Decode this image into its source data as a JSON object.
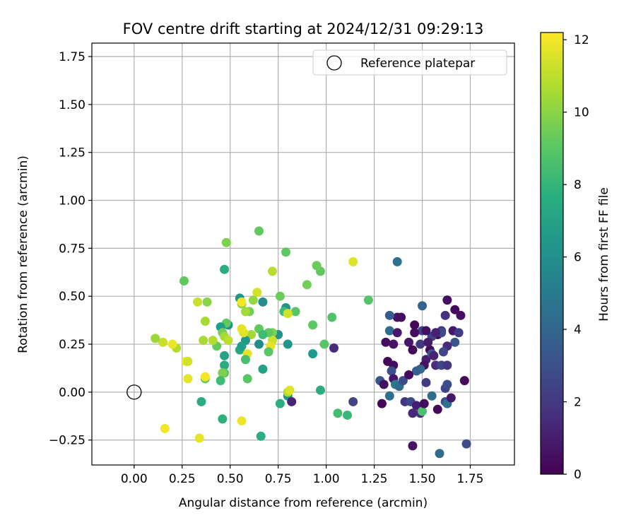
{
  "chart_data": {
    "type": "scatter",
    "title": "FOV centre drift starting at 2024/12/31 09:29:13",
    "xlabel": "Angular distance from reference (arcmin)",
    "ylabel": "Rotation from reference (arcmin)",
    "xlim": [
      -0.22,
      1.98
    ],
    "ylim": [
      -0.38,
      1.82
    ],
    "xticks": [
      0.0,
      0.25,
      0.5,
      0.75,
      1.0,
      1.25,
      1.5,
      1.75
    ],
    "xtick_labels": [
      "0.00",
      "0.25",
      "0.50",
      "0.75",
      "1.00",
      "1.25",
      "1.50",
      "1.75"
    ],
    "yticks": [
      -0.25,
      0.0,
      0.25,
      0.5,
      0.75,
      1.0,
      1.25,
      1.5,
      1.75
    ],
    "ytick_labels": [
      "−0.25",
      "0.00",
      "0.25",
      "0.50",
      "0.75",
      "1.00",
      "1.25",
      "1.50",
      "1.75"
    ],
    "grid": true,
    "legend": {
      "placement": "top-right",
      "entries": [
        "Reference platepar"
      ]
    },
    "reference_point": {
      "x": 0.0,
      "y": 0.0,
      "marker": "open-circle"
    },
    "colorbar": {
      "label": "Hours from first FF file",
      "colormap": "viridis",
      "range": [
        0,
        12.2
      ],
      "ticks": [
        0,
        2,
        4,
        6,
        8,
        10,
        12
      ],
      "tick_labels": [
        "0",
        "2",
        "4",
        "6",
        "8",
        "10",
        "12"
      ]
    },
    "points": [
      {
        "x": 1.63,
        "y": 0.48,
        "c": 0.4
      },
      {
        "x": 1.67,
        "y": 0.43,
        "c": 0.3
      },
      {
        "x": 1.7,
        "y": 0.4,
        "c": 0.5
      },
      {
        "x": 1.62,
        "y": 0.4,
        "c": 1.8
      },
      {
        "x": 1.6,
        "y": 0.32,
        "c": 2.0
      },
      {
        "x": 1.66,
        "y": 0.32,
        "c": 0.8
      },
      {
        "x": 1.69,
        "y": 0.31,
        "c": 2.2
      },
      {
        "x": 1.67,
        "y": 0.26,
        "c": 3.2
      },
      {
        "x": 1.63,
        "y": 0.24,
        "c": 1.4
      },
      {
        "x": 1.61,
        "y": 0.21,
        "c": 2.6
      },
      {
        "x": 1.58,
        "y": 0.3,
        "c": 0.2
      },
      {
        "x": 1.55,
        "y": 0.29,
        "c": 2.4
      },
      {
        "x": 1.54,
        "y": 0.22,
        "c": 0.3
      },
      {
        "x": 1.52,
        "y": 0.17,
        "c": 1.0
      },
      {
        "x": 1.55,
        "y": 0.2,
        "c": 3.4
      },
      {
        "x": 1.51,
        "y": 0.14,
        "c": 0.6
      },
      {
        "x": 1.49,
        "y": 0.12,
        "c": 4.0
      },
      {
        "x": 1.47,
        "y": 0.11,
        "c": 3.8
      },
      {
        "x": 1.5,
        "y": 0.32,
        "c": 2.3
      },
      {
        "x": 1.52,
        "y": 0.32,
        "c": 0.5
      },
      {
        "x": 1.5,
        "y": 0.45,
        "c": 3.9
      },
      {
        "x": 1.46,
        "y": 0.35,
        "c": 0.2
      },
      {
        "x": 1.46,
        "y": 0.31,
        "c": 0.4
      },
      {
        "x": 1.43,
        "y": 0.26,
        "c": 0.7
      },
      {
        "x": 1.45,
        "y": 0.22,
        "c": 0.2
      },
      {
        "x": 1.49,
        "y": 0.25,
        "c": 2.0
      },
      {
        "x": 1.53,
        "y": 0.26,
        "c": 0.9
      },
      {
        "x": 1.56,
        "y": 0.19,
        "c": 1.2
      },
      {
        "x": 1.57,
        "y": 0.14,
        "c": 1.6
      },
      {
        "x": 1.6,
        "y": 0.14,
        "c": 2.5
      },
      {
        "x": 1.63,
        "y": 0.14,
        "c": 1.9
      },
      {
        "x": 1.6,
        "y": 0.31,
        "c": 2.7
      },
      {
        "x": 1.57,
        "y": 0.31,
        "c": 1.1
      },
      {
        "x": 1.39,
        "y": 0.39,
        "c": 0.3
      },
      {
        "x": 1.37,
        "y": 0.39,
        "c": 0.6
      },
      {
        "x": 1.33,
        "y": 0.4,
        "c": 3.6
      },
      {
        "x": 1.37,
        "y": 0.68,
        "c": 4.6
      },
      {
        "x": 1.33,
        "y": 0.32,
        "c": 4.3
      },
      {
        "x": 1.37,
        "y": 0.31,
        "c": 0.8
      },
      {
        "x": 1.31,
        "y": 0.26,
        "c": 0.4
      },
      {
        "x": 1.35,
        "y": 0.25,
        "c": 0.6
      },
      {
        "x": 1.32,
        "y": 0.16,
        "c": 0.2
      },
      {
        "x": 1.35,
        "y": 0.14,
        "c": 0.4
      },
      {
        "x": 1.34,
        "y": 0.11,
        "c": 3.0
      },
      {
        "x": 1.35,
        "y": 0.07,
        "c": 0.7
      },
      {
        "x": 1.28,
        "y": 0.06,
        "c": 3.2
      },
      {
        "x": 1.3,
        "y": 0.04,
        "c": 0.5
      },
      {
        "x": 1.33,
        "y": -0.02,
        "c": 4.5
      },
      {
        "x": 1.29,
        "y": -0.06,
        "c": 0.2
      },
      {
        "x": 1.36,
        "y": 0.04,
        "c": 5.0
      },
      {
        "x": 1.38,
        "y": 0.03,
        "c": 4.2
      },
      {
        "x": 1.4,
        "y": 0.06,
        "c": 2.8
      },
      {
        "x": 1.43,
        "y": 0.09,
        "c": 0.3
      },
      {
        "x": 1.41,
        "y": -0.05,
        "c": 2.0
      },
      {
        "x": 1.44,
        "y": -0.05,
        "c": 2.7
      },
      {
        "x": 1.47,
        "y": -0.07,
        "c": 1.0
      },
      {
        "x": 1.45,
        "y": -0.11,
        "c": 1.4
      },
      {
        "x": 1.49,
        "y": -0.11,
        "c": 1.6
      },
      {
        "x": 1.5,
        "y": -0.1,
        "c": 8.7
      },
      {
        "x": 1.51,
        "y": -0.06,
        "c": 0.4
      },
      {
        "x": 1.55,
        "y": -0.02,
        "c": 4.3
      },
      {
        "x": 1.52,
        "y": 0.05,
        "c": 2.1
      },
      {
        "x": 1.58,
        "y": -0.09,
        "c": 0.3
      },
      {
        "x": 1.62,
        "y": -0.05,
        "c": 2.8
      },
      {
        "x": 1.63,
        "y": -0.06,
        "c": 4.6
      },
      {
        "x": 1.62,
        "y": 0.02,
        "c": 2.4
      },
      {
        "x": 1.63,
        "y": 0.04,
        "c": 2.9
      },
      {
        "x": 1.65,
        "y": -0.03,
        "c": 0.8
      },
      {
        "x": 1.72,
        "y": 0.06,
        "c": 0.3
      },
      {
        "x": 1.73,
        "y": -0.27,
        "c": 2.7
      },
      {
        "x": 1.59,
        "y": -0.32,
        "c": 4.3
      },
      {
        "x": 1.45,
        "y": -0.28,
        "c": 0.6
      },
      {
        "x": 1.14,
        "y": -0.05,
        "c": 2.5
      },
      {
        "x": 1.11,
        "y": -0.12,
        "c": 8.2
      },
      {
        "x": 1.06,
        "y": -0.11,
        "c": 8.5
      },
      {
        "x": 1.04,
        "y": 0.23,
        "c": 1.5
      },
      {
        "x": 1.22,
        "y": 0.48,
        "c": 8.9
      },
      {
        "x": 1.14,
        "y": 0.68,
        "c": 11.6
      },
      {
        "x": 1.03,
        "y": 0.39,
        "c": 8.8
      },
      {
        "x": 0.99,
        "y": 0.25,
        "c": 9.0
      },
      {
        "x": 0.97,
        "y": 0.01,
        "c": 7.6
      },
      {
        "x": 0.93,
        "y": 0.2,
        "c": 6.6
      },
      {
        "x": 0.97,
        "y": 0.63,
        "c": 9.2
      },
      {
        "x": 0.95,
        "y": 0.66,
        "c": 9.4
      },
      {
        "x": 0.9,
        "y": 0.56,
        "c": 9.6
      },
      {
        "x": 0.93,
        "y": 0.35,
        "c": 9.1
      },
      {
        "x": 0.84,
        "y": 0.42,
        "c": 9.0
      },
      {
        "x": 0.79,
        "y": 0.44,
        "c": 6.3
      },
      {
        "x": 0.78,
        "y": 0.42,
        "c": 8.4
      },
      {
        "x": 0.8,
        "y": 0.41,
        "c": 11.4
      },
      {
        "x": 0.79,
        "y": 0.73,
        "c": 9.1
      },
      {
        "x": 0.72,
        "y": 0.63,
        "c": 10.9
      },
      {
        "x": 0.76,
        "y": 0.5,
        "c": 9.4
      },
      {
        "x": 0.8,
        "y": 0.25,
        "c": 6.4
      },
      {
        "x": 0.75,
        "y": 0.3,
        "c": 6.2
      },
      {
        "x": 0.72,
        "y": 0.31,
        "c": 9.8
      },
      {
        "x": 0.72,
        "y": 0.27,
        "c": 11.3
      },
      {
        "x": 0.7,
        "y": 0.31,
        "c": 9.2
      },
      {
        "x": 0.71,
        "y": 0.24,
        "c": 11.8
      },
      {
        "x": 0.7,
        "y": 0.21,
        "c": 9.0
      },
      {
        "x": 0.67,
        "y": 0.47,
        "c": 6.0
      },
      {
        "x": 0.65,
        "y": 0.84,
        "c": 9.2
      },
      {
        "x": 0.64,
        "y": 0.52,
        "c": 11.4
      },
      {
        "x": 0.62,
        "y": 0.48,
        "c": 10.2
      },
      {
        "x": 0.6,
        "y": 0.42,
        "c": 9.6
      },
      {
        "x": 0.58,
        "y": 0.42,
        "c": 10.5
      },
      {
        "x": 0.56,
        "y": 0.46,
        "c": 10.0
      },
      {
        "x": 0.55,
        "y": 0.49,
        "c": 6.4
      },
      {
        "x": 0.56,
        "y": 0.47,
        "c": 12.0
      },
      {
        "x": 0.61,
        "y": 0.3,
        "c": 10.5
      },
      {
        "x": 0.65,
        "y": 0.33,
        "c": 9.2
      },
      {
        "x": 0.67,
        "y": 0.3,
        "c": 8.4
      },
      {
        "x": 0.65,
        "y": 0.25,
        "c": 5.9
      },
      {
        "x": 0.58,
        "y": 0.27,
        "c": 6.5
      },
      {
        "x": 0.57,
        "y": 0.31,
        "c": 11.6
      },
      {
        "x": 0.56,
        "y": 0.33,
        "c": 11.8
      },
      {
        "x": 0.55,
        "y": 0.22,
        "c": 7.3
      },
      {
        "x": 0.56,
        "y": 0.24,
        "c": 6.8
      },
      {
        "x": 0.59,
        "y": 0.2,
        "c": 11.8
      },
      {
        "x": 0.58,
        "y": 0.17,
        "c": 8.6
      },
      {
        "x": 0.67,
        "y": 0.12,
        "c": 7.0
      },
      {
        "x": 0.59,
        "y": 0.07,
        "c": 9.0
      },
      {
        "x": 0.56,
        "y": -0.15,
        "c": 11.9
      },
      {
        "x": 0.66,
        "y": -0.23,
        "c": 7.6
      },
      {
        "x": 0.76,
        "y": -0.06,
        "c": 7.6
      },
      {
        "x": 0.8,
        "y": -0.02,
        "c": 6.4
      },
      {
        "x": 0.82,
        "y": -0.05,
        "c": 1.2
      },
      {
        "x": 0.8,
        "y": 0.0,
        "c": 10.8
      },
      {
        "x": 0.81,
        "y": 0.01,
        "c": 11.6
      },
      {
        "x": 0.49,
        "y": 0.35,
        "c": 6.2
      },
      {
        "x": 0.48,
        "y": 0.36,
        "c": 9.2
      },
      {
        "x": 0.45,
        "y": 0.34,
        "c": 6.8
      },
      {
        "x": 0.46,
        "y": 0.31,
        "c": 9.6
      },
      {
        "x": 0.47,
        "y": 0.29,
        "c": 10.5
      },
      {
        "x": 0.49,
        "y": 0.27,
        "c": 11.0
      },
      {
        "x": 0.47,
        "y": 0.19,
        "c": 7.0
      },
      {
        "x": 0.47,
        "y": 0.14,
        "c": 7.5
      },
      {
        "x": 0.47,
        "y": 0.1,
        "c": 8.9
      },
      {
        "x": 0.46,
        "y": 0.1,
        "c": 9.8
      },
      {
        "x": 0.45,
        "y": 0.06,
        "c": 8.4
      },
      {
        "x": 0.47,
        "y": 0.64,
        "c": 7.6
      },
      {
        "x": 0.48,
        "y": 0.78,
        "c": 9.8
      },
      {
        "x": 0.43,
        "y": 0.24,
        "c": 9.3
      },
      {
        "x": 0.41,
        "y": 0.27,
        "c": 10.8
      },
      {
        "x": 0.37,
        "y": 0.37,
        "c": 10.6
      },
      {
        "x": 0.38,
        "y": 0.47,
        "c": 10.0
      },
      {
        "x": 0.33,
        "y": 0.47,
        "c": 11.2
      },
      {
        "x": 0.36,
        "y": 0.27,
        "c": 10.6
      },
      {
        "x": 0.37,
        "y": 0.07,
        "c": 9.2
      },
      {
        "x": 0.37,
        "y": 0.08,
        "c": 12.0
      },
      {
        "x": 0.35,
        "y": -0.05,
        "c": 7.5
      },
      {
        "x": 0.34,
        "y": -0.24,
        "c": 11.8
      },
      {
        "x": 0.46,
        "y": -0.14,
        "c": 7.7
      },
      {
        "x": 0.26,
        "y": 0.58,
        "c": 9.2
      },
      {
        "x": 0.27,
        "y": 0.16,
        "c": 12.0
      },
      {
        "x": 0.28,
        "y": 0.16,
        "c": 11.4
      },
      {
        "x": 0.28,
        "y": 0.07,
        "c": 11.8
      },
      {
        "x": 0.22,
        "y": 0.23,
        "c": 10.8
      },
      {
        "x": 0.2,
        "y": 0.25,
        "c": 11.9
      },
      {
        "x": 0.15,
        "y": 0.26,
        "c": 11.2
      },
      {
        "x": 0.11,
        "y": 0.28,
        "c": 10.4
      },
      {
        "x": 0.16,
        "y": -0.19,
        "c": 12.0
      }
    ]
  }
}
